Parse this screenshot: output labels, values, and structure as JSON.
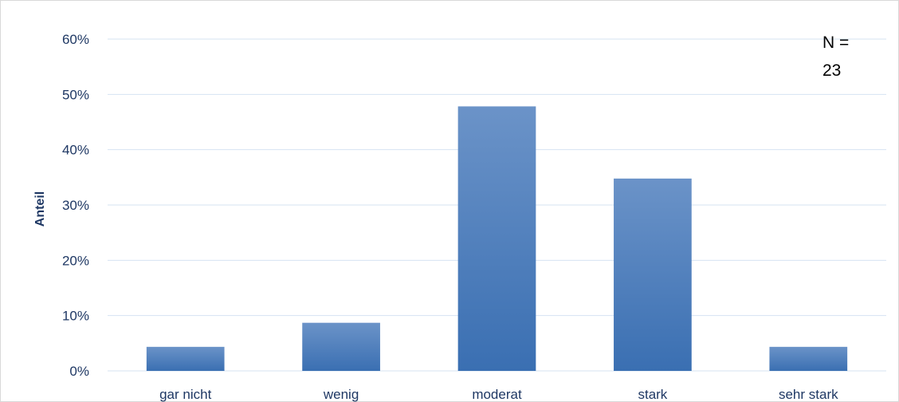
{
  "chart_data": {
    "type": "bar",
    "categories": [
      "gar nicht",
      "wenig",
      "moderat",
      "stark",
      "sehr stark"
    ],
    "values": [
      4.35,
      8.7,
      47.83,
      34.78,
      4.35
    ],
    "unit": "%",
    "title": "",
    "xlabel": "",
    "ylabel": "Anteil",
    "ylim": [
      0,
      60
    ],
    "yticks": [
      "0%",
      "10%",
      "20%",
      "30%",
      "40%",
      "50%",
      "60%"
    ],
    "ytick_values": [
      0,
      10,
      20,
      30,
      40,
      50,
      60
    ],
    "grid": true,
    "legend": "none",
    "annotation_lines": [
      "N =",
      "23"
    ],
    "colors": {
      "bar_top": "#6b93c8",
      "bar_bottom": "#3a6fb2",
      "grid": "#d6e3f2",
      "text": "#1f3864"
    }
  }
}
